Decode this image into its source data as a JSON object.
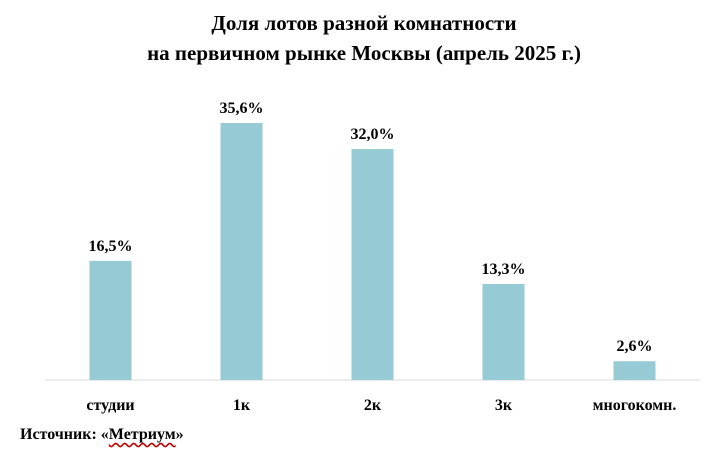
{
  "chart_data": {
    "type": "bar",
    "title": [
      "Доля лотов разной комнатности",
      "на первичном рынке Москвы (апрель 2025 г.)"
    ],
    "categories": [
      "студии",
      "1к",
      "2к",
      "3к",
      "многокомн."
    ],
    "values": [
      16.5,
      35.6,
      32.0,
      13.3,
      2.6
    ],
    "data_labels": [
      "16,5%",
      "35,6%",
      "32,0%",
      "13,3%",
      "2,6%"
    ],
    "bar_color": "#96cbd6",
    "axis_color": "#d9d9d9",
    "grid": false,
    "legend": "none"
  },
  "source": {
    "prefix": "Источник: «",
    "name": "Метриум",
    "suffix": "»"
  }
}
